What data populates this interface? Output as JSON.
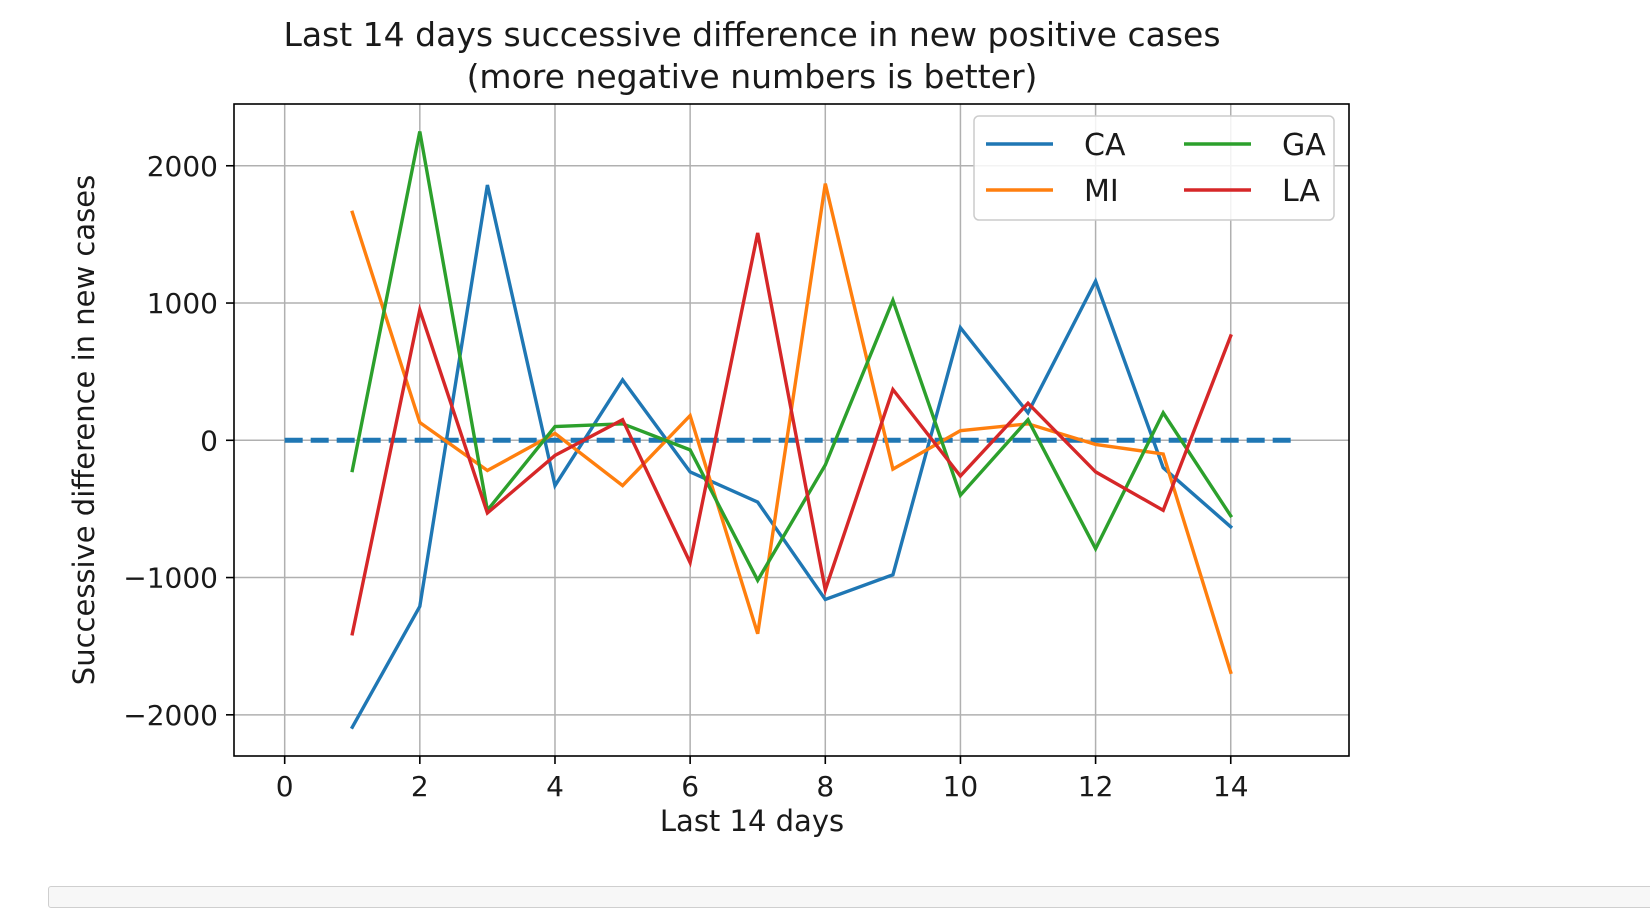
{
  "chart_data": {
    "type": "line",
    "title": "Last 14 days successive difference in new positive cases",
    "subtitle": "(more negative numbers is better)",
    "xlabel": "Last 14 days",
    "ylabel": "Successive difference in new cases",
    "xlim": [
      -0.75,
      15.75
    ],
    "ylim": [
      -2300,
      2450
    ],
    "xticks": [
      0,
      2,
      4,
      6,
      8,
      10,
      12,
      14
    ],
    "xtick_labels": [
      "0",
      "2",
      "4",
      "6",
      "8",
      "10",
      "12",
      "14"
    ],
    "yticks": [
      -2000,
      -1000,
      0,
      1000,
      2000
    ],
    "ytick_labels": [
      "−2000",
      "−1000",
      "0",
      "1000",
      "2000"
    ],
    "grid": true,
    "legend": {
      "placement": "top-right",
      "columns": 2,
      "entries": [
        "CA",
        "GA",
        "MI",
        "LA"
      ]
    },
    "x": [
      1,
      2,
      3,
      4,
      5,
      6,
      7,
      8,
      9,
      10,
      11,
      12,
      13,
      14
    ],
    "series": [
      {
        "name": "CA",
        "color": "#1f77b4",
        "values": [
          -2090,
          -1210,
          1860,
          -330,
          440,
          -230,
          -450,
          -1160,
          -980,
          820,
          200,
          1160,
          -200,
          -630
        ]
      },
      {
        "name": "MI",
        "color": "#ff7f0e",
        "values": [
          1660,
          130,
          -220,
          50,
          -330,
          180,
          -1410,
          1870,
          -210,
          70,
          120,
          -30,
          -100,
          -1690
        ]
      },
      {
        "name": "GA",
        "color": "#2ca02c",
        "values": [
          -220,
          2250,
          -510,
          100,
          120,
          -70,
          -1020,
          -180,
          1020,
          -400,
          150,
          -790,
          200,
          -550
        ]
      },
      {
        "name": "LA",
        "color": "#d62728",
        "values": [
          -1410,
          950,
          -530,
          -110,
          150,
          -890,
          1510,
          -1090,
          370,
          -260,
          270,
          -230,
          -510,
          760
        ]
      }
    ],
    "reference_line": {
      "y": 0,
      "x_start": 0,
      "x_end": 15,
      "color": "#1f77b4",
      "style": "dashed"
    }
  }
}
